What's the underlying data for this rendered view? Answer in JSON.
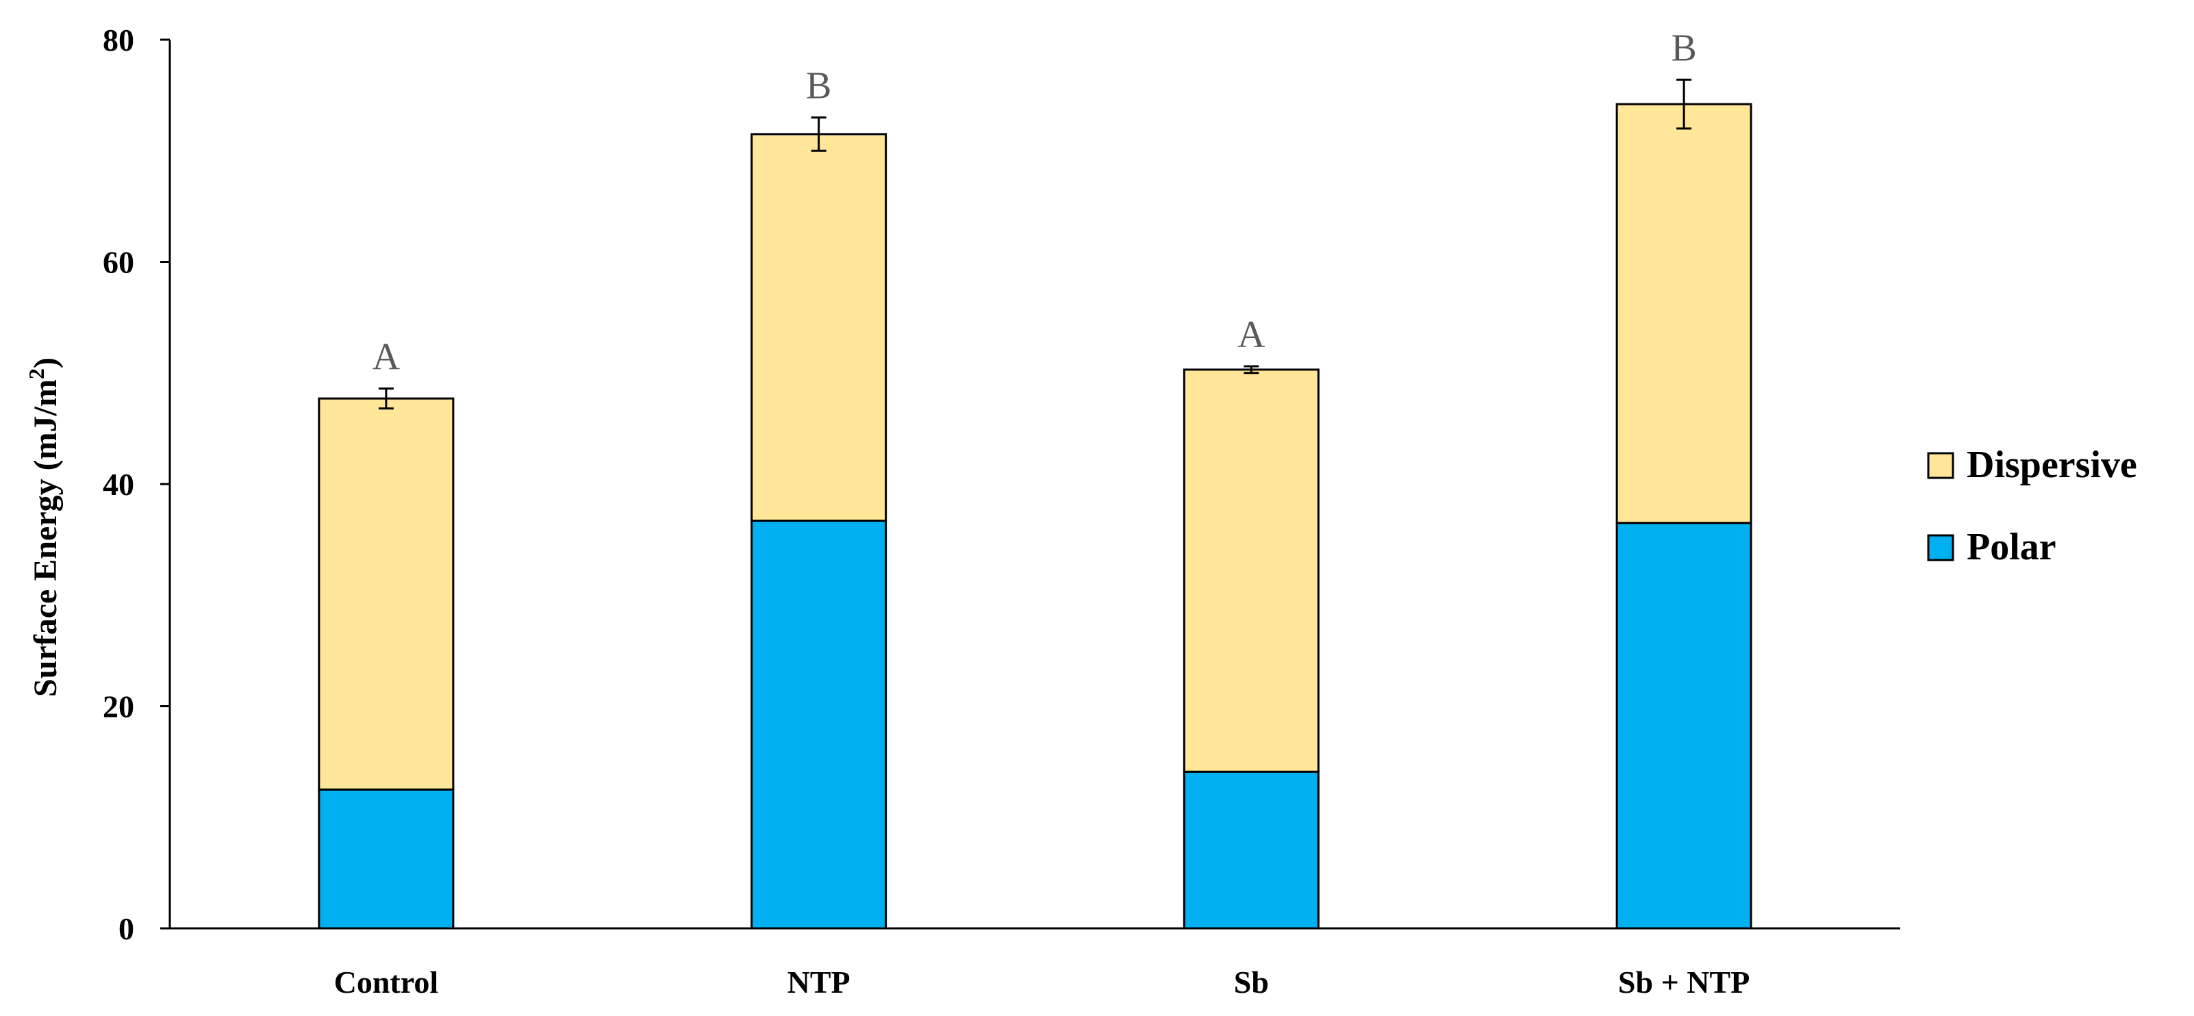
{
  "chart_data": {
    "type": "bar",
    "stacked": true,
    "categories": [
      "Control",
      "NTP",
      "Sb",
      "Sb + NTP"
    ],
    "series": [
      {
        "name": "Polar",
        "values": [
          12.5,
          36.7,
          14.1,
          36.5
        ],
        "color": "#00B0F0"
      },
      {
        "name": "Dispersive",
        "values": [
          35.2,
          34.8,
          36.2,
          37.7
        ],
        "color": "#FFE699"
      }
    ],
    "totals": [
      47.7,
      71.5,
      50.3,
      74.2
    ],
    "error": [
      0.9,
      1.5,
      0.3,
      2.2
    ],
    "group_letters": [
      "A",
      "B",
      "A",
      "B"
    ],
    "ylabel_main": "Surface Energy  (mJ/m",
    "ylabel_sup": "2",
    "ylabel_close": ")",
    "xlabel": "",
    "ylim": [
      0,
      80
    ],
    "yticks": [
      0,
      20,
      40,
      60,
      80
    ],
    "grid": false,
    "legend": {
      "position": "right",
      "entries": [
        {
          "label": "Dispersive",
          "color": "#FFE699"
        },
        {
          "label": "Polar",
          "color": "#00B0F0"
        }
      ]
    }
  }
}
